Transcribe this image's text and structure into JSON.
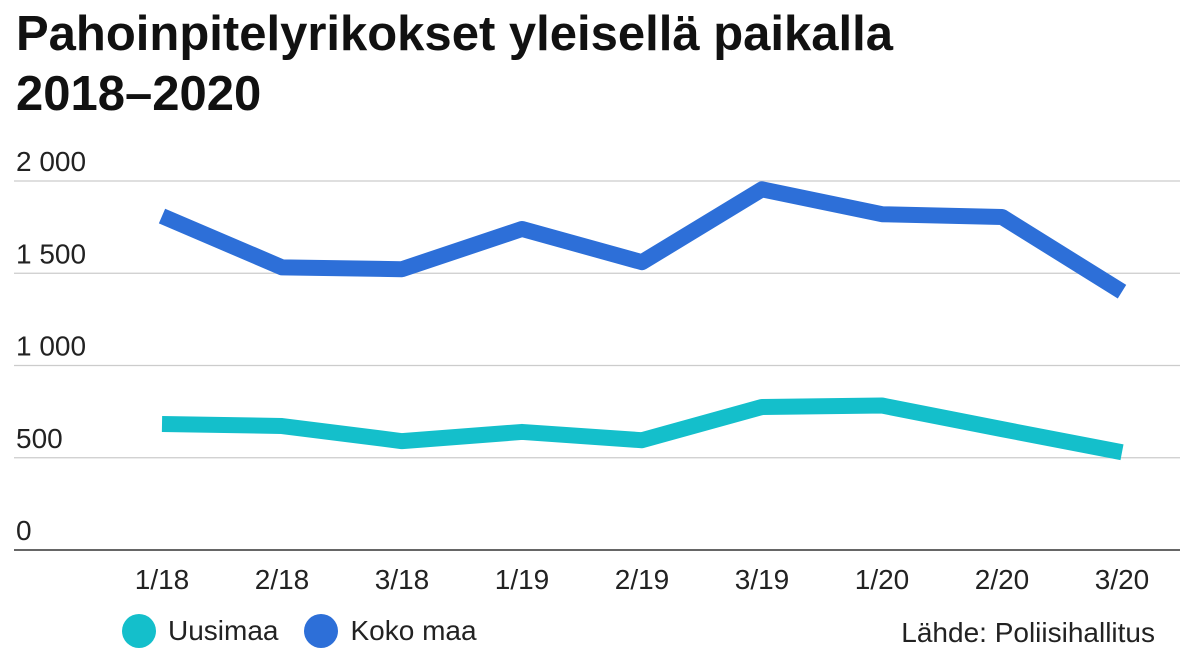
{
  "chart_data": {
    "type": "line",
    "title_lines": [
      "Pahoinpitelyrikokset yleisellä paikalla",
      "2018–2020"
    ],
    "categories": [
      "1/18",
      "2/18",
      "3/18",
      "1/19",
      "2/19",
      "3/19",
      "1/20",
      "2/20",
      "3/20"
    ],
    "series": [
      {
        "name": "Uusimaa",
        "color": "#14BFCB",
        "values": [
          683,
          672,
          590,
          640,
          595,
          775,
          783,
          655,
          530
        ]
      },
      {
        "name": "Koko maa",
        "color": "#2D6FD8",
        "values": [
          1810,
          1532,
          1522,
          1740,
          1560,
          1955,
          1820,
          1805,
          1400
        ]
      }
    ],
    "y_ticks": [
      {
        "value": 0,
        "label": "0"
      },
      {
        "value": 500,
        "label": "500"
      },
      {
        "value": 1000,
        "label": "1 000"
      },
      {
        "value": 1500,
        "label": "1 500"
      },
      {
        "value": 2000,
        "label": "2 000"
      }
    ],
    "ylim": [
      0,
      2000
    ],
    "grid": true,
    "legend_position": "bottom-left",
    "source": "Lähde: Poliisihallitus"
  }
}
